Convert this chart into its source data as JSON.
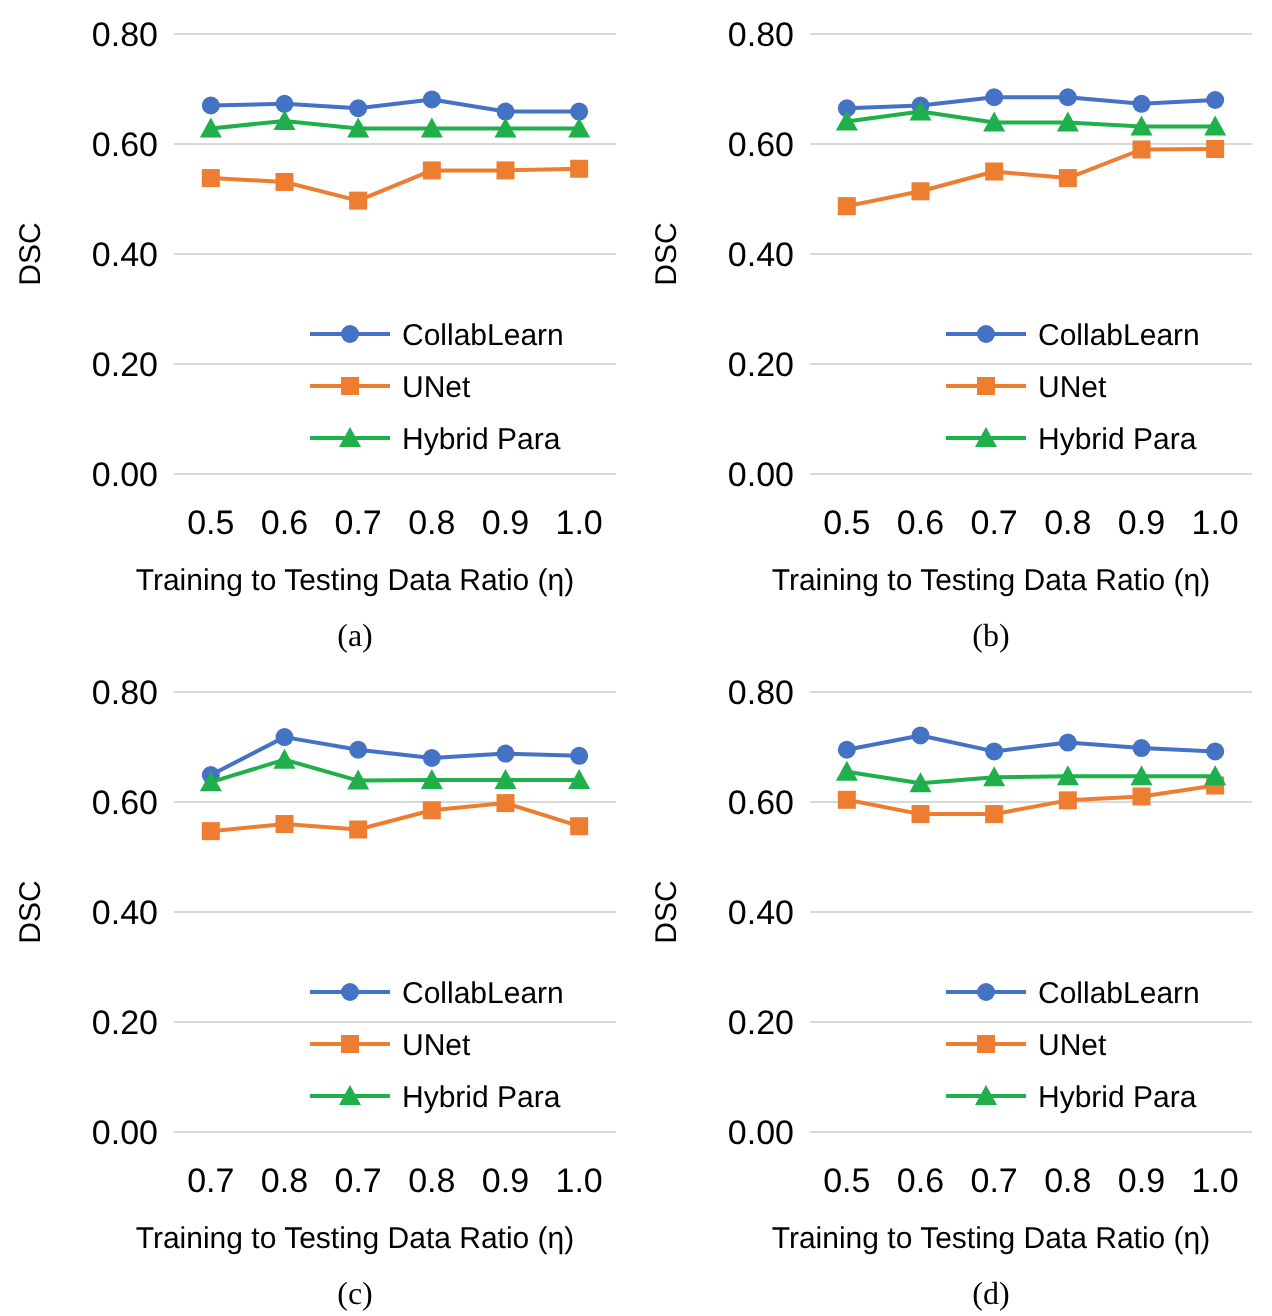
{
  "chart_data": [
    {
      "type": "line",
      "title": "(a)",
      "xlabel": "Training to Testing Data Ratio (η)",
      "ylabel": "DSC",
      "categories": [
        "0.5",
        "0.6",
        "0.7",
        "0.8",
        "0.9",
        "1.0"
      ],
      "ylim": [
        0,
        0.8
      ],
      "yticks": [
        {
          "value": 0,
          "label": "0.00"
        },
        {
          "value": 0.2,
          "label": "0.20"
        },
        {
          "value": 0.4,
          "label": "0.40"
        },
        {
          "value": 0.6,
          "label": "0.60"
        },
        {
          "value": 0.8,
          "label": "0.80"
        }
      ],
      "grid": "y",
      "legend": "bottom right",
      "series": [
        {
          "name": "CollabLearn",
          "color": "#4472c4",
          "marker": "circle",
          "values": [
            0.67,
            0.673,
            0.665,
            0.681,
            0.659,
            0.659
          ]
        },
        {
          "name": "UNet",
          "color": "#ed7d31",
          "marker": "square",
          "values": [
            0.538,
            0.531,
            0.497,
            0.552,
            0.552,
            0.555
          ]
        },
        {
          "name": "Hybrid Para",
          "color": "#1fb04b",
          "marker": "triangle",
          "values": [
            0.628,
            0.642,
            0.628,
            0.628,
            0.628,
            0.628
          ]
        }
      ]
    },
    {
      "type": "line",
      "title": "(b)",
      "xlabel": "Training to Testing Data Ratio (η)",
      "ylabel": "DSC",
      "categories": [
        "0.5",
        "0.6",
        "0.7",
        "0.8",
        "0.9",
        "1.0"
      ],
      "ylim": [
        0,
        0.8
      ],
      "yticks": [
        {
          "value": 0,
          "label": "0.00"
        },
        {
          "value": 0.2,
          "label": "0.20"
        },
        {
          "value": 0.4,
          "label": "0.40"
        },
        {
          "value": 0.6,
          "label": "0.60"
        },
        {
          "value": 0.8,
          "label": "0.80"
        }
      ],
      "grid": "y",
      "legend": "bottom right",
      "series": [
        {
          "name": "CollabLearn",
          "color": "#4472c4",
          "marker": "circle",
          "values": [
            0.665,
            0.67,
            0.685,
            0.685,
            0.673,
            0.68
          ]
        },
        {
          "name": "UNet",
          "color": "#ed7d31",
          "marker": "square",
          "values": [
            0.487,
            0.514,
            0.55,
            0.538,
            0.59,
            0.591
          ]
        },
        {
          "name": "Hybrid Para",
          "color": "#1fb04b",
          "marker": "triangle",
          "values": [
            0.641,
            0.659,
            0.639,
            0.639,
            0.632,
            0.632
          ]
        }
      ]
    },
    {
      "type": "line",
      "title": "(c)",
      "xlabel": "Training to Testing Data Ratio (η)",
      "ylabel": "DSC",
      "categories": [
        "0.7",
        "0.8",
        "0.7",
        "0.8",
        "0.9",
        "1.0"
      ],
      "ylim": [
        0,
        0.8
      ],
      "yticks": [
        {
          "value": 0,
          "label": "0.00"
        },
        {
          "value": 0.2,
          "label": "0.20"
        },
        {
          "value": 0.4,
          "label": "0.40"
        },
        {
          "value": 0.6,
          "label": "0.60"
        },
        {
          "value": 0.8,
          "label": "0.80"
        }
      ],
      "grid": "y",
      "legend": "bottom right",
      "series": [
        {
          "name": "CollabLearn",
          "color": "#4472c4",
          "marker": "circle",
          "values": [
            0.649,
            0.718,
            0.695,
            0.68,
            0.688,
            0.684
          ]
        },
        {
          "name": "UNet",
          "color": "#ed7d31",
          "marker": "square",
          "values": [
            0.547,
            0.56,
            0.55,
            0.585,
            0.598,
            0.556
          ]
        },
        {
          "name": "Hybrid Para",
          "color": "#1fb04b",
          "marker": "triangle",
          "values": [
            0.636,
            0.677,
            0.639,
            0.64,
            0.64,
            0.64
          ]
        }
      ]
    },
    {
      "type": "line",
      "title": "(d)",
      "xlabel": "Training to Testing Data Ratio (η)",
      "ylabel": "DSC",
      "categories": [
        "0.5",
        "0.6",
        "0.7",
        "0.8",
        "0.9",
        "1.0"
      ],
      "ylim": [
        0,
        0.8
      ],
      "yticks": [
        {
          "value": 0,
          "label": "0.00"
        },
        {
          "value": 0.2,
          "label": "0.20"
        },
        {
          "value": 0.4,
          "label": "0.40"
        },
        {
          "value": 0.6,
          "label": "0.60"
        },
        {
          "value": 0.8,
          "label": "0.80"
        }
      ],
      "grid": "y",
      "legend": "bottom right",
      "series": [
        {
          "name": "CollabLearn",
          "color": "#4472c4",
          "marker": "circle",
          "values": [
            0.695,
            0.721,
            0.692,
            0.708,
            0.698,
            0.692
          ]
        },
        {
          "name": "UNet",
          "color": "#ed7d31",
          "marker": "square",
          "values": [
            0.604,
            0.578,
            0.578,
            0.603,
            0.61,
            0.63
          ]
        },
        {
          "name": "Hybrid Para",
          "color": "#1fb04b",
          "marker": "triangle",
          "values": [
            0.655,
            0.634,
            0.645,
            0.647,
            0.647,
            0.647
          ]
        }
      ]
    }
  ]
}
